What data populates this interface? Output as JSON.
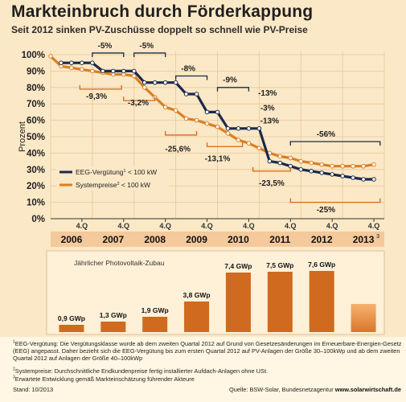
{
  "title": "Markteinbruch durch Förderkappung",
  "subtitle": "Seit 2012 sinken PV-Zuschüsse doppelt so schnell wie PV-Preise",
  "chart_data": [
    {
      "type": "line",
      "ylabel": "Prozent",
      "ylim": [
        0,
        100
      ],
      "y_ticks": [
        "0%",
        "10%",
        "20%",
        "30%",
        "40%",
        "50%",
        "60%",
        "70%",
        "80%",
        "90%",
        "100%"
      ],
      "quarter_labels": [
        "4.Q",
        "4.Q",
        "4.Q",
        "4.Q",
        "4.Q",
        "4.Q",
        "4.Q",
        "4.Q"
      ],
      "years": [
        "2006",
        "2007",
        "2008",
        "2009",
        "2010",
        "2011",
        "2012",
        "2013"
      ],
      "year_2013_sup": "3",
      "legend": {
        "eeg_label": "EEG-Vergütung",
        "eeg_sup": "1",
        "eeg_unit": "< 100 kW",
        "sys_label": "Systempreise",
        "sys_sup": "2",
        "sys_unit": "< 100 kW"
      },
      "colors": {
        "eeg": "#1b2a4a",
        "sys": "#d97f25",
        "annotation": "#d46a17"
      },
      "series": [
        {
          "name": "EEG-Vergütung < 100 kW",
          "x": [
            2006.25,
            2006.5,
            2006.75,
            2007.0,
            2007.25,
            2007.5,
            2007.75,
            2008.0,
            2008.25,
            2008.5,
            2008.75,
            2009.0,
            2009.25,
            2009.5,
            2009.75,
            2010.0,
            2010.25,
            2010.5,
            2010.75,
            2011.0,
            2011.25,
            2011.5,
            2011.75,
            2012.0,
            2012.25,
            2012.5,
            2012.75,
            2013.0,
            2013.25,
            2013.5,
            2013.75
          ],
          "y": [
            95,
            95,
            95,
            95,
            90,
            90,
            90,
            90,
            83,
            83,
            83,
            83,
            76,
            76,
            65,
            65,
            55,
            55,
            55,
            55,
            35,
            34,
            32,
            30,
            29,
            28,
            27,
            26,
            25,
            24,
            24
          ]
        },
        {
          "name": "Systempreise < 100 kW",
          "x": [
            2006.0,
            2006.25,
            2006.5,
            2006.75,
            2007.0,
            2007.25,
            2007.5,
            2007.75,
            2008.0,
            2008.25,
            2008.5,
            2008.75,
            2009.0,
            2009.25,
            2009.5,
            2009.75,
            2010.0,
            2010.25,
            2010.5,
            2010.75,
            2011.0,
            2011.25,
            2011.5,
            2011.75,
            2012.0,
            2012.25,
            2012.5,
            2012.75,
            2013.0,
            2013.25,
            2013.5,
            2013.75
          ],
          "y": [
            99,
            93,
            92,
            91,
            90,
            89,
            88,
            88,
            87,
            80,
            74,
            68,
            66,
            61,
            60,
            58,
            56,
            52,
            48,
            46,
            43,
            40,
            38,
            37,
            35,
            34,
            33,
            32,
            32,
            32,
            32,
            33
          ]
        }
      ],
      "annotations": [
        {
          "text": "-5%",
          "x": 2007.3,
          "y": 104,
          "color": "dark",
          "dir": "below",
          "bx1": 2007.0,
          "bx2": 2007.75,
          "by": 101
        },
        {
          "text": "-5%",
          "x": 2008.3,
          "y": 104,
          "color": "dark",
          "dir": "below",
          "bx1": 2008.0,
          "bx2": 2008.75,
          "by": 101
        },
        {
          "text": "-8%",
          "x": 2009.3,
          "y": 90,
          "color": "dark",
          "dir": "below",
          "bx1": 2009.0,
          "bx2": 2009.75,
          "by": 87
        },
        {
          "text": "-9%",
          "x": 2010.3,
          "y": 83,
          "color": "dark",
          "dir": "below",
          "bx1": 2010.0,
          "bx2": 2010.75,
          "by": 80
        },
        {
          "text": "-13%",
          "x": 2011.2,
          "y": 75,
          "color": "dark",
          "dir": "none"
        },
        {
          "text": "-3%",
          "x": 2011.2,
          "y": 66,
          "color": "dark",
          "dir": "none"
        },
        {
          "text": "-13%",
          "x": 2011.25,
          "y": 58,
          "color": "dark",
          "dir": "none"
        },
        {
          "text": "-56%",
          "x": 2012.6,
          "y": 50,
          "color": "dark",
          "dir": "below",
          "bx1": 2011.75,
          "bx2": 2013.9,
          "by": 47
        },
        {
          "text": "-9,3%",
          "x": 2007.1,
          "y": 73,
          "color": "dark",
          "dir": "above",
          "bx1": 2006.7,
          "bx2": 2007.7,
          "by": 79
        },
        {
          "text": "-3,2%",
          "x": 2008.1,
          "y": 69,
          "color": "dark",
          "dir": "above",
          "bx1": 2007.75,
          "bx2": 2008.5,
          "by": 72
        },
        {
          "text": "-25,6%",
          "x": 2009.05,
          "y": 41,
          "color": "dark",
          "dir": "above",
          "bx1": 2008.75,
          "bx2": 2009.5,
          "by": 51
        },
        {
          "text": "-13,1%",
          "x": 2010.0,
          "y": 35,
          "color": "dark",
          "dir": "above",
          "bx1": 2009.75,
          "bx2": 2010.6,
          "by": 44
        },
        {
          "text": "-23,5%",
          "x": 2011.3,
          "y": 20,
          "color": "dark",
          "dir": "above",
          "bx1": 2010.85,
          "bx2": 2011.75,
          "by": 29
        },
        {
          "text": "-25%",
          "x": 2012.6,
          "y": 4,
          "color": "dark",
          "dir": "above",
          "bx1": 2011.75,
          "bx2": 2013.9,
          "by": 10
        }
      ]
    },
    {
      "type": "bar",
      "title": "Jährlicher Photovoltaik-Zubau",
      "categories": [
        "2006",
        "2007",
        "2008",
        "2009",
        "2010",
        "2011",
        "2012",
        "2013"
      ],
      "values": [
        0.9,
        1.3,
        1.9,
        3.8,
        7.4,
        7.5,
        7.6,
        3.5
      ],
      "labels": [
        "0,9 GWp",
        "1,3 GWp",
        "1,9 GWp",
        "3,8 GWp",
        "7,4 GWp",
        "7,5 GWp",
        "7,6 GWp",
        ""
      ],
      "estimate_last": true,
      "colors": {
        "bar": "#cf6a1e",
        "estimate_top": "#f7b26e",
        "estimate_bottom": "#d8762e"
      }
    }
  ],
  "footnotes": {
    "fn1_sup": "1",
    "fn1_text": "EEG-Vergütung: Die Vergütungsklasse wurde ab dem zweiten Quartal 2012 auf Grund von Gesetzesänderungen im Erneuerbare-Energien-Gesetz (EEG) angepasst. Daher bezieht sich die EEG-Vergütung bis zum ersten Quartal 2012 auf PV-Anlagen der Größe 30–100kWp und ab dem zweiten Quartal 2012 auf Anlagen der Größe 40–100kWp",
    "fn2_sup": "2",
    "fn2_text": "Systempreise: Durchschnittliche Endkundenpreise fertig installierter Aufdach-Anlagen ohne USt.",
    "fn3_sup": "3",
    "fn3_text": "Erwartete Entwicklung gemäß Markteinschätzung führender Akteure",
    "stand": "Stand: 10/2013",
    "source_prefix": "Quelle: BSW-Solar, Bundesnetzagentur",
    "source_url": "www.solarwirtschaft.de"
  }
}
